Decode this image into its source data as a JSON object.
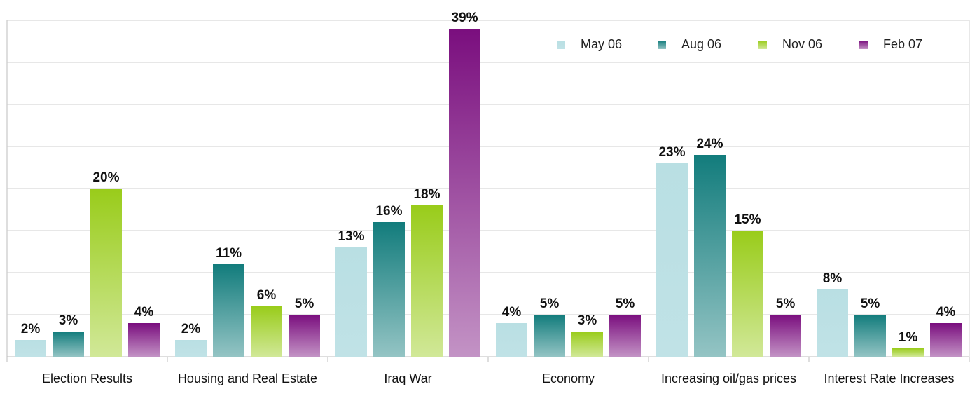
{
  "chart_data": {
    "type": "bar",
    "categories": [
      "Election Results",
      "Housing and Real Estate",
      "Iraq War",
      "Economy",
      "Increasing oil/gas prices",
      "Interest Rate Increases"
    ],
    "series": [
      {
        "name": "May 06",
        "color": "#b9dfe3",
        "values": [
          2,
          2,
          13,
          4,
          23,
          8
        ],
        "value_labels": [
          "2%",
          "2%",
          "13%",
          "4%",
          "23%",
          "8%"
        ]
      },
      {
        "name": "Aug 06",
        "color": "#127c7c",
        "values": [
          3,
          11,
          16,
          5,
          24,
          5
        ],
        "value_labels": [
          "3%",
          "11%",
          "16%",
          "5%",
          "24%",
          "5%"
        ]
      },
      {
        "name": "Nov 06",
        "color": "#99cc1a",
        "values": [
          20,
          6,
          18,
          3,
          15,
          1
        ],
        "value_labels": [
          "20%",
          "6%",
          "18%",
          "3%",
          "15%",
          "1%"
        ]
      },
      {
        "name": "Feb 07",
        "color": "#7a0e7e",
        "values": [
          4,
          5,
          39,
          5,
          5,
          4
        ],
        "value_labels": [
          "4%",
          "5%",
          "39%",
          "5%",
          "5%",
          "4%"
        ]
      }
    ],
    "ylim": [
      0,
      40
    ],
    "yticks": [
      0,
      5,
      10,
      15,
      20,
      25,
      30,
      35,
      40
    ],
    "grid": true,
    "legend": "upper right"
  }
}
